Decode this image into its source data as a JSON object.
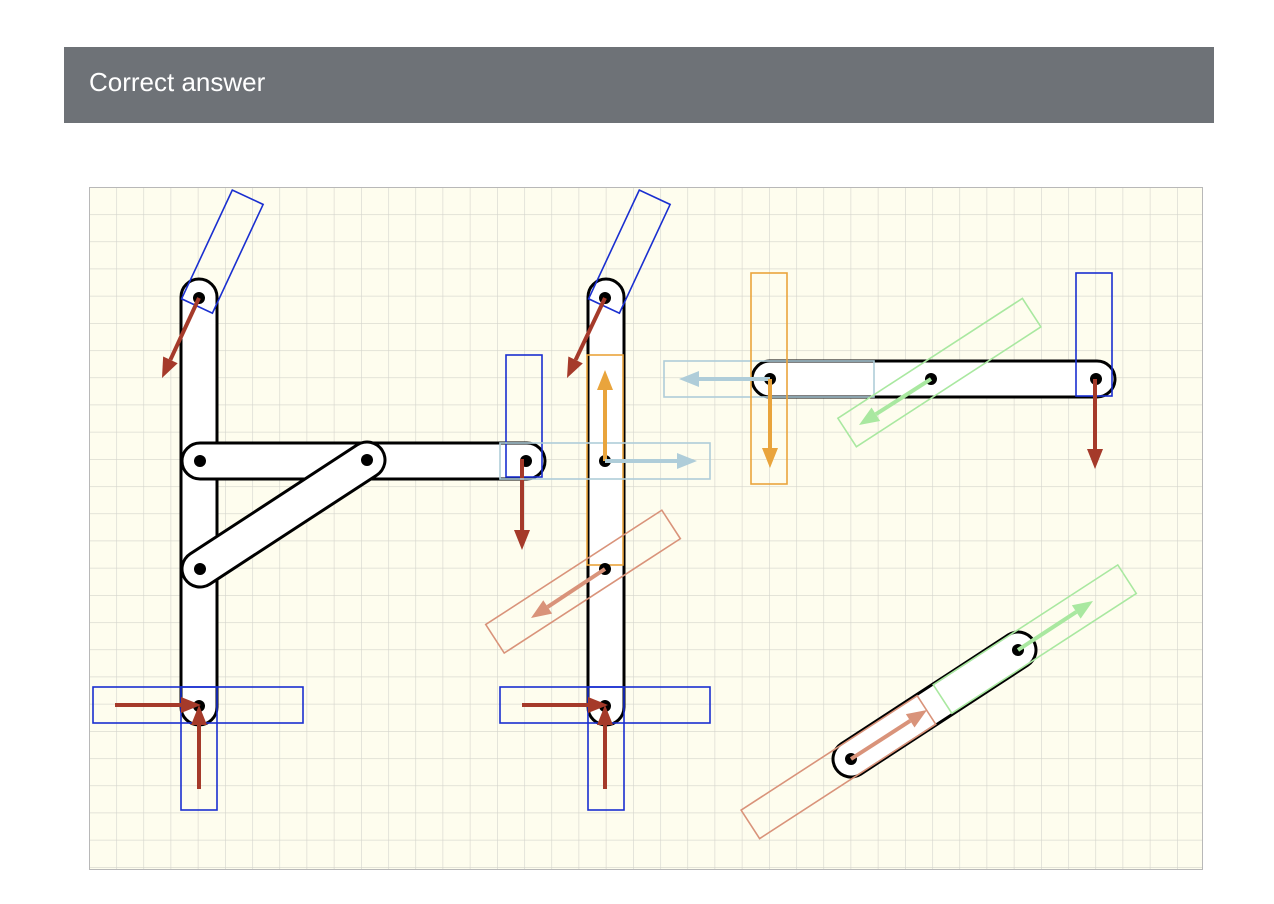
{
  "header": {
    "title": "Correct answer"
  },
  "palette": {
    "background": "#fefdee",
    "grid": "#d4d4cc",
    "frame": "#b8b8b8",
    "member_fill": "#ffffff",
    "member_stroke": "#000000",
    "support_box": "#1a2fd0",
    "reaction_arrow": "#a53a2a",
    "orange_force": "#e9a43c",
    "light_blue_force": "#afcdd9",
    "salmon_force": "#d9937a",
    "light_green_force": "#a9e8a0"
  }
}
